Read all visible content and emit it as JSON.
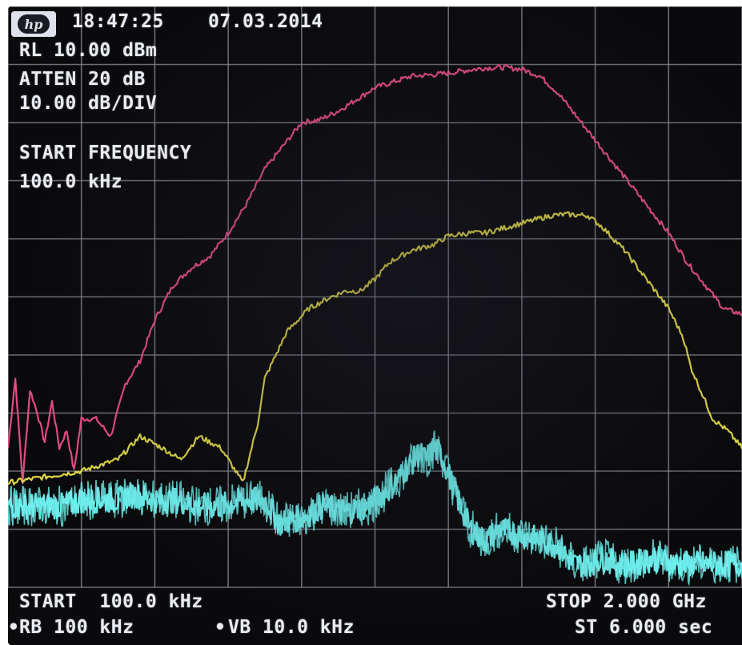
{
  "header": {
    "logo_text": "hp",
    "time": "18:47:25",
    "date": "07.03.2014",
    "reference_level": "RL 10.00 dBm",
    "attenuation": "ATTEN 20 dB",
    "scale": "10.00 dB/DIV"
  },
  "active_function": {
    "label": "START FREQUENCY",
    "value": "100.0 kHz"
  },
  "footer": {
    "start": "START  100.0 kHz",
    "stop": "STOP 2.000 GHz",
    "resolution_bw": "RB 100 kHz",
    "video_bw": "VB 10.0 kHz",
    "sweep_time": "ST 6.000 sec",
    "marker_symbol": "•"
  },
  "colors": {
    "screen_bg": "#0a0a0c",
    "grid": "#8d9099",
    "annotation": "#e9ecf2",
    "trace_a": "#ef4f8b",
    "trace_b": "#e9e04a",
    "trace_c": "#6ff2f0"
  },
  "chart_data": {
    "type": "line",
    "title": "",
    "xlabel": "",
    "ylabel": "",
    "x_unit": "MHz",
    "y_unit": "dBm",
    "xlim": [
      0.1,
      2000
    ],
    "ylim": [
      -90,
      10
    ],
    "grid": true,
    "divisions": {
      "x": 10,
      "y": 10
    },
    "series": [
      {
        "color": "#ef4f8b",
        "x": [
          0.1,
          20,
          40,
          60,
          80,
          100,
          120,
          140,
          160,
          180,
          200,
          240,
          280,
          320,
          360,
          400,
          450,
          500,
          550,
          600,
          650,
          700,
          750,
          800,
          850,
          900,
          950,
          1000,
          1050,
          1100,
          1150,
          1200,
          1250,
          1300,
          1350,
          1400,
          1450,
          1500,
          1550,
          1600,
          1650,
          1700,
          1750,
          1800,
          1850,
          1900,
          1950,
          2000
        ],
        "y": [
          -66,
          -54,
          -72,
          -56,
          -60,
          -65,
          -58,
          -66,
          -63,
          -70,
          -61,
          -61,
          -64,
          -55,
          -51,
          -44,
          -38,
          -35,
          -33,
          -29,
          -24,
          -18,
          -14,
          -10,
          -9.5,
          -8,
          -6,
          -4,
          -3,
          -2,
          -1.8,
          -1.5,
          -1,
          -0.6,
          -0.5,
          -0.8,
          -2,
          -5,
          -9,
          -13,
          -17,
          -21,
          -25,
          -29,
          -34,
          -38,
          -42,
          -43
        ]
      },
      {
        "color": "#e9e04a",
        "x": [
          0.1,
          100,
          200,
          300,
          360,
          420,
          470,
          520,
          580,
          640,
          680,
          700,
          760,
          820,
          880,
          920,
          960,
          1000,
          1040,
          1100,
          1160,
          1200,
          1260,
          1300,
          1360,
          1420,
          1480,
          1520,
          1580,
          1620,
          1680,
          1740,
          1800,
          1840,
          1860,
          1880,
          1900,
          1920,
          1960,
          2000
        ],
        "y": [
          -72,
          -71,
          -70,
          -68,
          -64,
          -66,
          -68,
          -64,
          -66,
          -72,
          -62,
          -54,
          -46,
          -42,
          -40,
          -39,
          -39,
          -37,
          -34,
          -32,
          -31,
          -29.5,
          -29,
          -29,
          -28,
          -27,
          -26,
          -25.8,
          -26,
          -28,
          -32,
          -37,
          -42,
          -47,
          -52,
          -55,
          -58,
          -61,
          -63,
          -66
        ]
      },
      {
        "color": "#6ff2f0",
        "x": [
          0.1,
          50,
          100,
          150,
          200,
          260,
          300,
          340,
          400,
          460,
          520,
          580,
          640,
          700,
          720,
          740,
          800,
          860,
          920,
          980,
          1000,
          1040,
          1080,
          1120,
          1140,
          1160,
          1180,
          1220,
          1260,
          1300,
          1340,
          1400,
          1460,
          1500,
          1540,
          1580,
          1620,
          1660,
          1700,
          1760,
          1820,
          1880,
          1940,
          2000
        ],
        "y": [
          -76,
          -76,
          -76,
          -76,
          -75,
          -75,
          -75,
          -74,
          -75,
          -75,
          -76,
          -76,
          -75,
          -75,
          -77,
          -79,
          -78,
          -76,
          -77,
          -76,
          -75,
          -73,
          -70,
          -67,
          -68,
          -66,
          -67,
          -74,
          -80,
          -82,
          -80,
          -81,
          -82,
          -83,
          -86,
          -86,
          -85,
          -86,
          -86,
          -85,
          -86,
          -86,
          -86,
          -86
        ]
      }
    ]
  }
}
